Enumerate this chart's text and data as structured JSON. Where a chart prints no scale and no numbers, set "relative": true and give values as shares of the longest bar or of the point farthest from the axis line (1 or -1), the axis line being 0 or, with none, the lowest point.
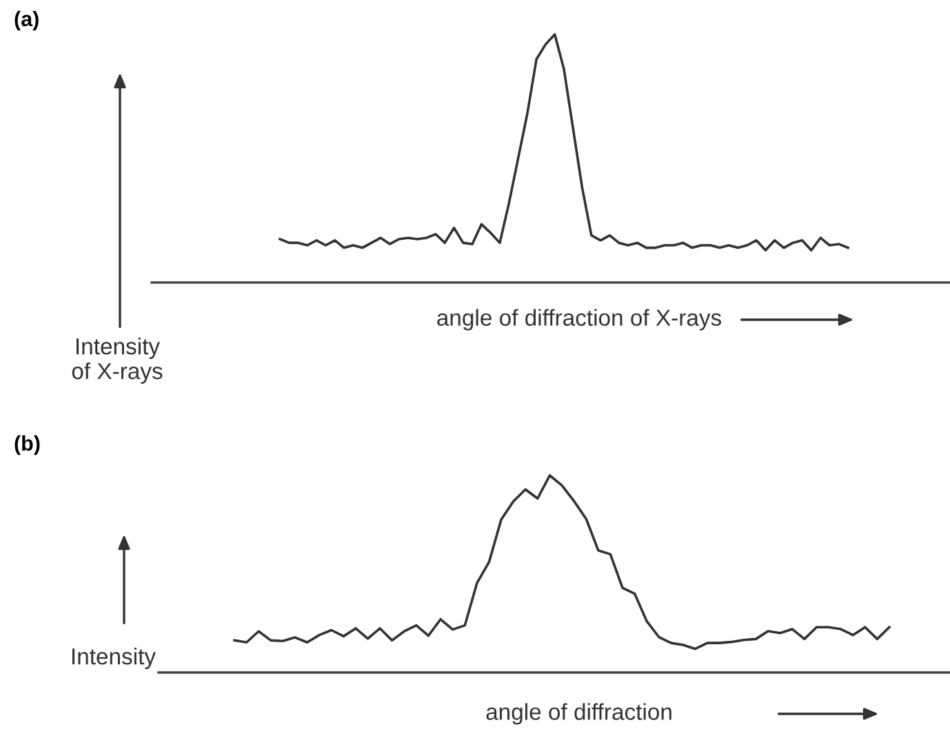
{
  "chart_data": [
    {
      "type": "line",
      "annotations": [
        "(a)"
      ],
      "xlabel": "angle of diffraction of X-rays",
      "ylabel": "Intensity\nof X-rays",
      "relative": true,
      "categories": [
        null,
        null,
        null,
        null,
        null,
        null,
        null,
        null,
        null,
        null,
        null,
        null,
        null,
        null,
        null,
        null,
        null,
        null,
        null,
        null,
        null,
        null,
        null,
        null,
        null,
        null,
        null,
        null,
        null,
        null,
        null,
        null,
        null,
        null,
        null,
        null,
        null,
        null,
        null,
        null,
        null,
        null,
        null,
        null,
        null,
        null,
        null,
        null,
        null,
        null,
        null,
        null,
        null,
        null,
        null,
        null,
        null,
        null,
        null,
        null,
        null,
        null,
        null
      ],
      "series": [
        {
          "color": "#333333",
          "values": [
            0.175,
            0.16,
            0.16,
            0.15,
            0.17,
            0.15,
            0.17,
            0.14,
            0.15,
            0.14,
            0.16,
            0.18,
            0.155,
            0.175,
            0.18,
            0.175,
            0.18,
            0.195,
            0.16,
            0.22,
            0.16,
            0.155,
            0.235,
            0.2,
            0.16,
            0.32,
            0.5,
            0.68,
            0.9,
            0.96,
            1.0,
            0.86,
            0.62,
            0.38,
            0.19,
            0.17,
            0.19,
            0.16,
            0.15,
            0.16,
            0.14,
            0.14,
            0.15,
            0.15,
            0.16,
            0.14,
            0.15,
            0.15,
            0.14,
            0.15,
            0.14,
            0.15,
            0.17,
            0.13,
            0.17,
            0.14,
            0.16,
            0.17,
            0.13,
            0.18,
            0.15,
            0.155,
            0.14
          ]
        }
      ]
    },
    {
      "type": "line",
      "annotations": [
        "(b)"
      ],
      "xlabel": "angle of diffraction",
      "ylabel": "Intensity",
      "relative": true,
      "categories": [
        null,
        null,
        null,
        null,
        null,
        null,
        null,
        null,
        null,
        null,
        null,
        null,
        null,
        null,
        null,
        null,
        null,
        null,
        null,
        null,
        null,
        null,
        null,
        null,
        null,
        null,
        null,
        null,
        null,
        null,
        null,
        null,
        null,
        null,
        null,
        null,
        null,
        null,
        null,
        null,
        null,
        null,
        null,
        null,
        null,
        null,
        null,
        null,
        null,
        null,
        null,
        null,
        null,
        null,
        null
      ],
      "series": [
        {
          "color": "#333333",
          "values": [
            0.163,
            0.153,
            0.209,
            0.163,
            0.16,
            0.178,
            0.153,
            0.19,
            0.215,
            0.184,
            0.224,
            0.172,
            0.224,
            0.163,
            0.209,
            0.239,
            0.187,
            0.27,
            0.218,
            0.239,
            0.454,
            0.561,
            0.776,
            0.868,
            0.929,
            0.883,
            1.0,
            0.95,
            0.87,
            0.78,
            0.62,
            0.6,
            0.43,
            0.4,
            0.26,
            0.18,
            0.15,
            0.14,
            0.12,
            0.15,
            0.15,
            0.155,
            0.165,
            0.17,
            0.21,
            0.2,
            0.22,
            0.17,
            0.23,
            0.23,
            0.22,
            0.19,
            0.23,
            0.17,
            0.23
          ]
        }
      ]
    }
  ]
}
